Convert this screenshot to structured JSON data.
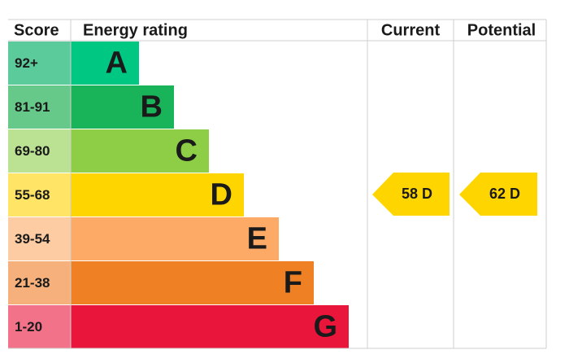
{
  "header": {
    "score": "Score",
    "energy_rating": "Energy rating",
    "current": "Current",
    "potential": "Potential"
  },
  "bands": [
    {
      "score": "92+",
      "letter": "A",
      "color": "#00c781",
      "score_color": "#5ccb9b"
    },
    {
      "score": "81-91",
      "letter": "B",
      "color": "#19b459",
      "score_color": "#66c98a"
    },
    {
      "score": "69-80",
      "letter": "C",
      "color": "#8dce46",
      "score_color": "#bbe293"
    },
    {
      "score": "55-68",
      "letter": "D",
      "color": "#ffd500",
      "score_color": "#ffe466"
    },
    {
      "score": "39-54",
      "letter": "E",
      "color": "#fcaa65",
      "score_color": "#fdcca3"
    },
    {
      "score": "21-38",
      "letter": "F",
      "color": "#ef8023",
      "score_color": "#f5b07c"
    },
    {
      "score": "1-20",
      "letter": "G",
      "color": "#e9153b",
      "score_color": "#f27389"
    }
  ],
  "current": {
    "label": "58 D",
    "color": "#ffd500"
  },
  "potential": {
    "label": "62 D",
    "color": "#ffd500"
  }
}
